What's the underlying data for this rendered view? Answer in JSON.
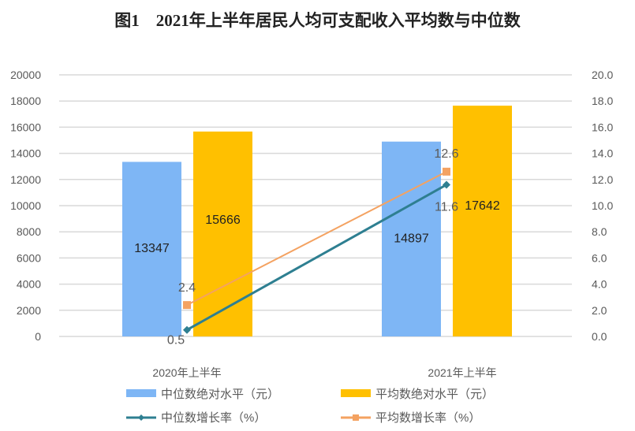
{
  "chart_data": {
    "type": "bar",
    "title": "图1　2021年上半年居民人均可支配收入平均数与中位数",
    "categories": [
      "2020年上半年",
      "2021年上半年"
    ],
    "series": [
      {
        "name": "中位数绝对水平（元）",
        "type": "bar",
        "axis": "left",
        "values": [
          13347,
          14897
        ],
        "color": "#7EB6F5"
      },
      {
        "name": "平均数绝对水平（元）",
        "type": "bar",
        "axis": "left",
        "values": [
          15666,
          17642
        ],
        "color": "#FFC000"
      },
      {
        "name": "中位数增长率（%）",
        "type": "line",
        "axis": "right",
        "values": [
          0.5,
          11.6
        ],
        "color": "#2E7F91",
        "marker": "diamond"
      },
      {
        "name": "平均数增长率（%）",
        "type": "line",
        "axis": "right",
        "values": [
          2.4,
          12.6
        ],
        "color": "#F4A261",
        "marker": "square"
      }
    ],
    "ylim_left": [
      0,
      20000
    ],
    "ylim_right": [
      0,
      20
    ],
    "yticks_left": [
      "0",
      "2000",
      "4000",
      "6000",
      "8000",
      "10000",
      "12000",
      "14000",
      "16000",
      "18000",
      "20000"
    ],
    "yticks_right": [
      "0.0",
      "2.0",
      "4.0",
      "6.0",
      "8.0",
      "10.0",
      "12.0",
      "14.0",
      "16.0",
      "18.0",
      "20.0"
    ],
    "grid": true,
    "legend_placement": "bottom"
  }
}
